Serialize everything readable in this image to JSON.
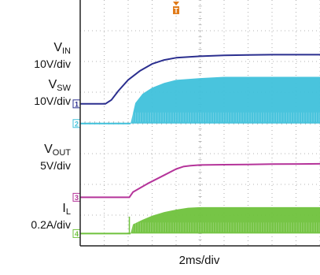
{
  "chart_data": {
    "type": "line",
    "title": "",
    "xlabel": "2ms/div",
    "ylabel": "",
    "x_divisions": 10,
    "y_divisions": 8,
    "grid": true,
    "trigger_marker": "T",
    "channels": [
      {
        "id": "1",
        "name_main": "V",
        "name_sub": "IN",
        "scale": "10V/div",
        "color": "#2b2f8f",
        "style": "line",
        "points": [
          [
            0,
            0.62
          ],
          [
            1.05,
            0.62
          ],
          [
            1.3,
            0.75
          ],
          [
            1.6,
            1.05
          ],
          [
            2.0,
            1.4
          ],
          [
            2.5,
            1.7
          ],
          [
            3.0,
            1.92
          ],
          [
            3.5,
            2.05
          ],
          [
            4.0,
            2.12
          ],
          [
            5.0,
            2.17
          ],
          [
            6.0,
            2.2
          ],
          [
            7.0,
            2.21
          ],
          [
            8.0,
            2.22
          ],
          [
            10.0,
            2.22
          ]
        ]
      },
      {
        "id": "2",
        "name_main": "V",
        "name_sub": "SW",
        "scale": "10V/div",
        "color": "#3fc1db",
        "style": "envelope",
        "baseline": -0.02,
        "envelope": [
          [
            2.1,
            -0.02
          ],
          [
            2.3,
            0.65
          ],
          [
            2.6,
            0.95
          ],
          [
            3.0,
            1.15
          ],
          [
            3.5,
            1.3
          ],
          [
            4.0,
            1.4
          ],
          [
            5.0,
            1.46
          ],
          [
            6.0,
            1.5
          ],
          [
            7.0,
            1.5
          ],
          [
            10.0,
            1.5
          ]
        ]
      },
      {
        "id": "3",
        "name_main": "V",
        "name_sub": "OUT",
        "scale": "5V/div",
        "color": "#b5349a",
        "style": "line",
        "points": [
          [
            0,
            -2.42
          ],
          [
            2.05,
            -2.42
          ],
          [
            2.2,
            -2.25
          ],
          [
            2.8,
            -1.98
          ],
          [
            3.5,
            -1.7
          ],
          [
            4.0,
            -1.5
          ],
          [
            4.3,
            -1.42
          ],
          [
            4.6,
            -1.39
          ],
          [
            5.0,
            -1.37
          ],
          [
            6.0,
            -1.36
          ],
          [
            7.0,
            -1.35
          ],
          [
            8.0,
            -1.34
          ],
          [
            10.0,
            -1.33
          ]
        ]
      },
      {
        "id": "4",
        "name_main": "I",
        "name_sub": "L",
        "scale": "0.2A/div",
        "color": "#6fc23c",
        "style": "envelope",
        "baseline": -3.6,
        "spike": [
          2.05,
          -3.05
        ],
        "envelope": [
          [
            2.1,
            -3.6
          ],
          [
            2.2,
            -3.3
          ],
          [
            2.6,
            -3.15
          ],
          [
            3.0,
            -3.02
          ],
          [
            3.5,
            -2.9
          ],
          [
            4.0,
            -2.82
          ],
          [
            4.5,
            -2.76
          ],
          [
            5.0,
            -2.74
          ],
          [
            6.0,
            -2.74
          ],
          [
            7.0,
            -2.74
          ],
          [
            10.0,
            -2.74
          ]
        ]
      }
    ]
  }
}
